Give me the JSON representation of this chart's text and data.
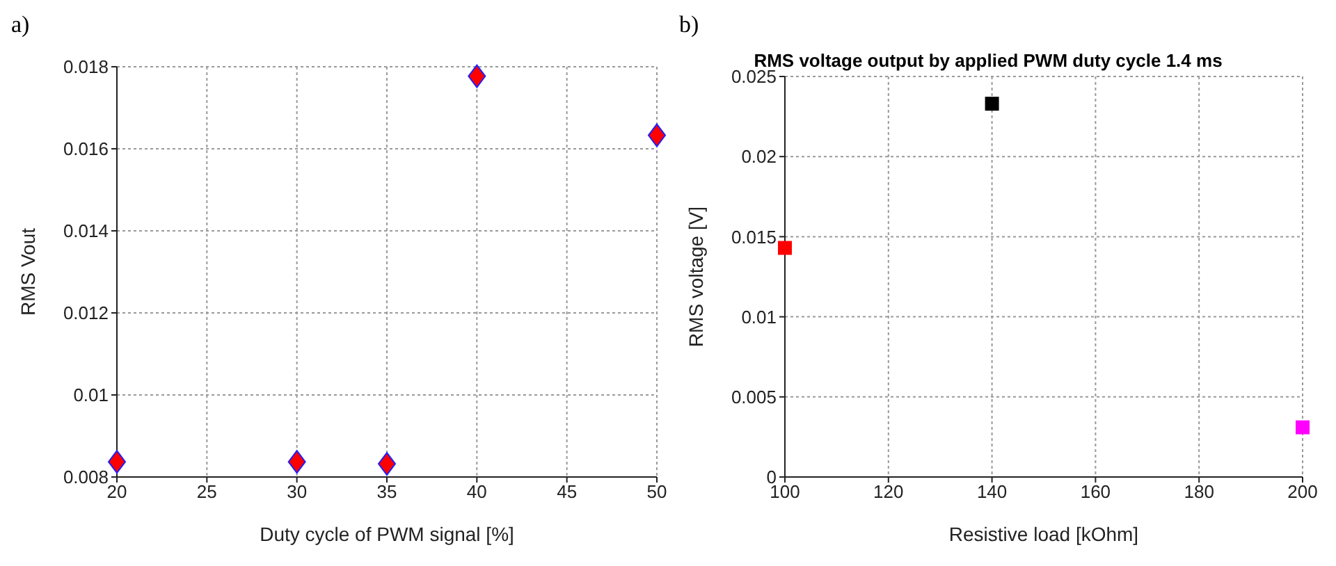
{
  "chart_data": [
    {
      "type": "scatter",
      "annotations": [
        "a)"
      ],
      "xlabel": "Duty cycle of PWM signal [%]",
      "ylabel": "RMS Vout",
      "x": [
        20,
        30,
        35,
        40,
        50
      ],
      "values": [
        0.00837,
        0.00837,
        0.00832,
        0.01777,
        0.01633
      ],
      "color": "#ff0000",
      "marker": "diamond",
      "xlim": [
        20,
        50
      ],
      "xticks": [
        20,
        25,
        30,
        35,
        40,
        45,
        50
      ],
      "ylim": [
        0.008,
        0.018
      ],
      "yticks": [
        0.008,
        0.01,
        0.012,
        0.014,
        0.016,
        0.018
      ],
      "grid": true
    },
    {
      "type": "scatter",
      "annotations": [
        "b)"
      ],
      "title": "RMS voltage output by applied PWM duty cycle 1.4 ms",
      "xlabel": "Resistive load [kOhm]",
      "ylabel": "RMS voltage [V]",
      "x": [
        100,
        140,
        200
      ],
      "values": [
        0.0143,
        0.0233,
        0.0031
      ],
      "colors": [
        "#ff0000",
        "#000000",
        "#ff00ff"
      ],
      "marker": "square",
      "xlim": [
        100,
        200
      ],
      "xticks": [
        100,
        120,
        140,
        160,
        180,
        200
      ],
      "ylim": [
        0,
        0.025
      ],
      "yticks": [
        0,
        0.005,
        0.01,
        0.015,
        0.02,
        0.025
      ],
      "grid": true
    }
  ]
}
